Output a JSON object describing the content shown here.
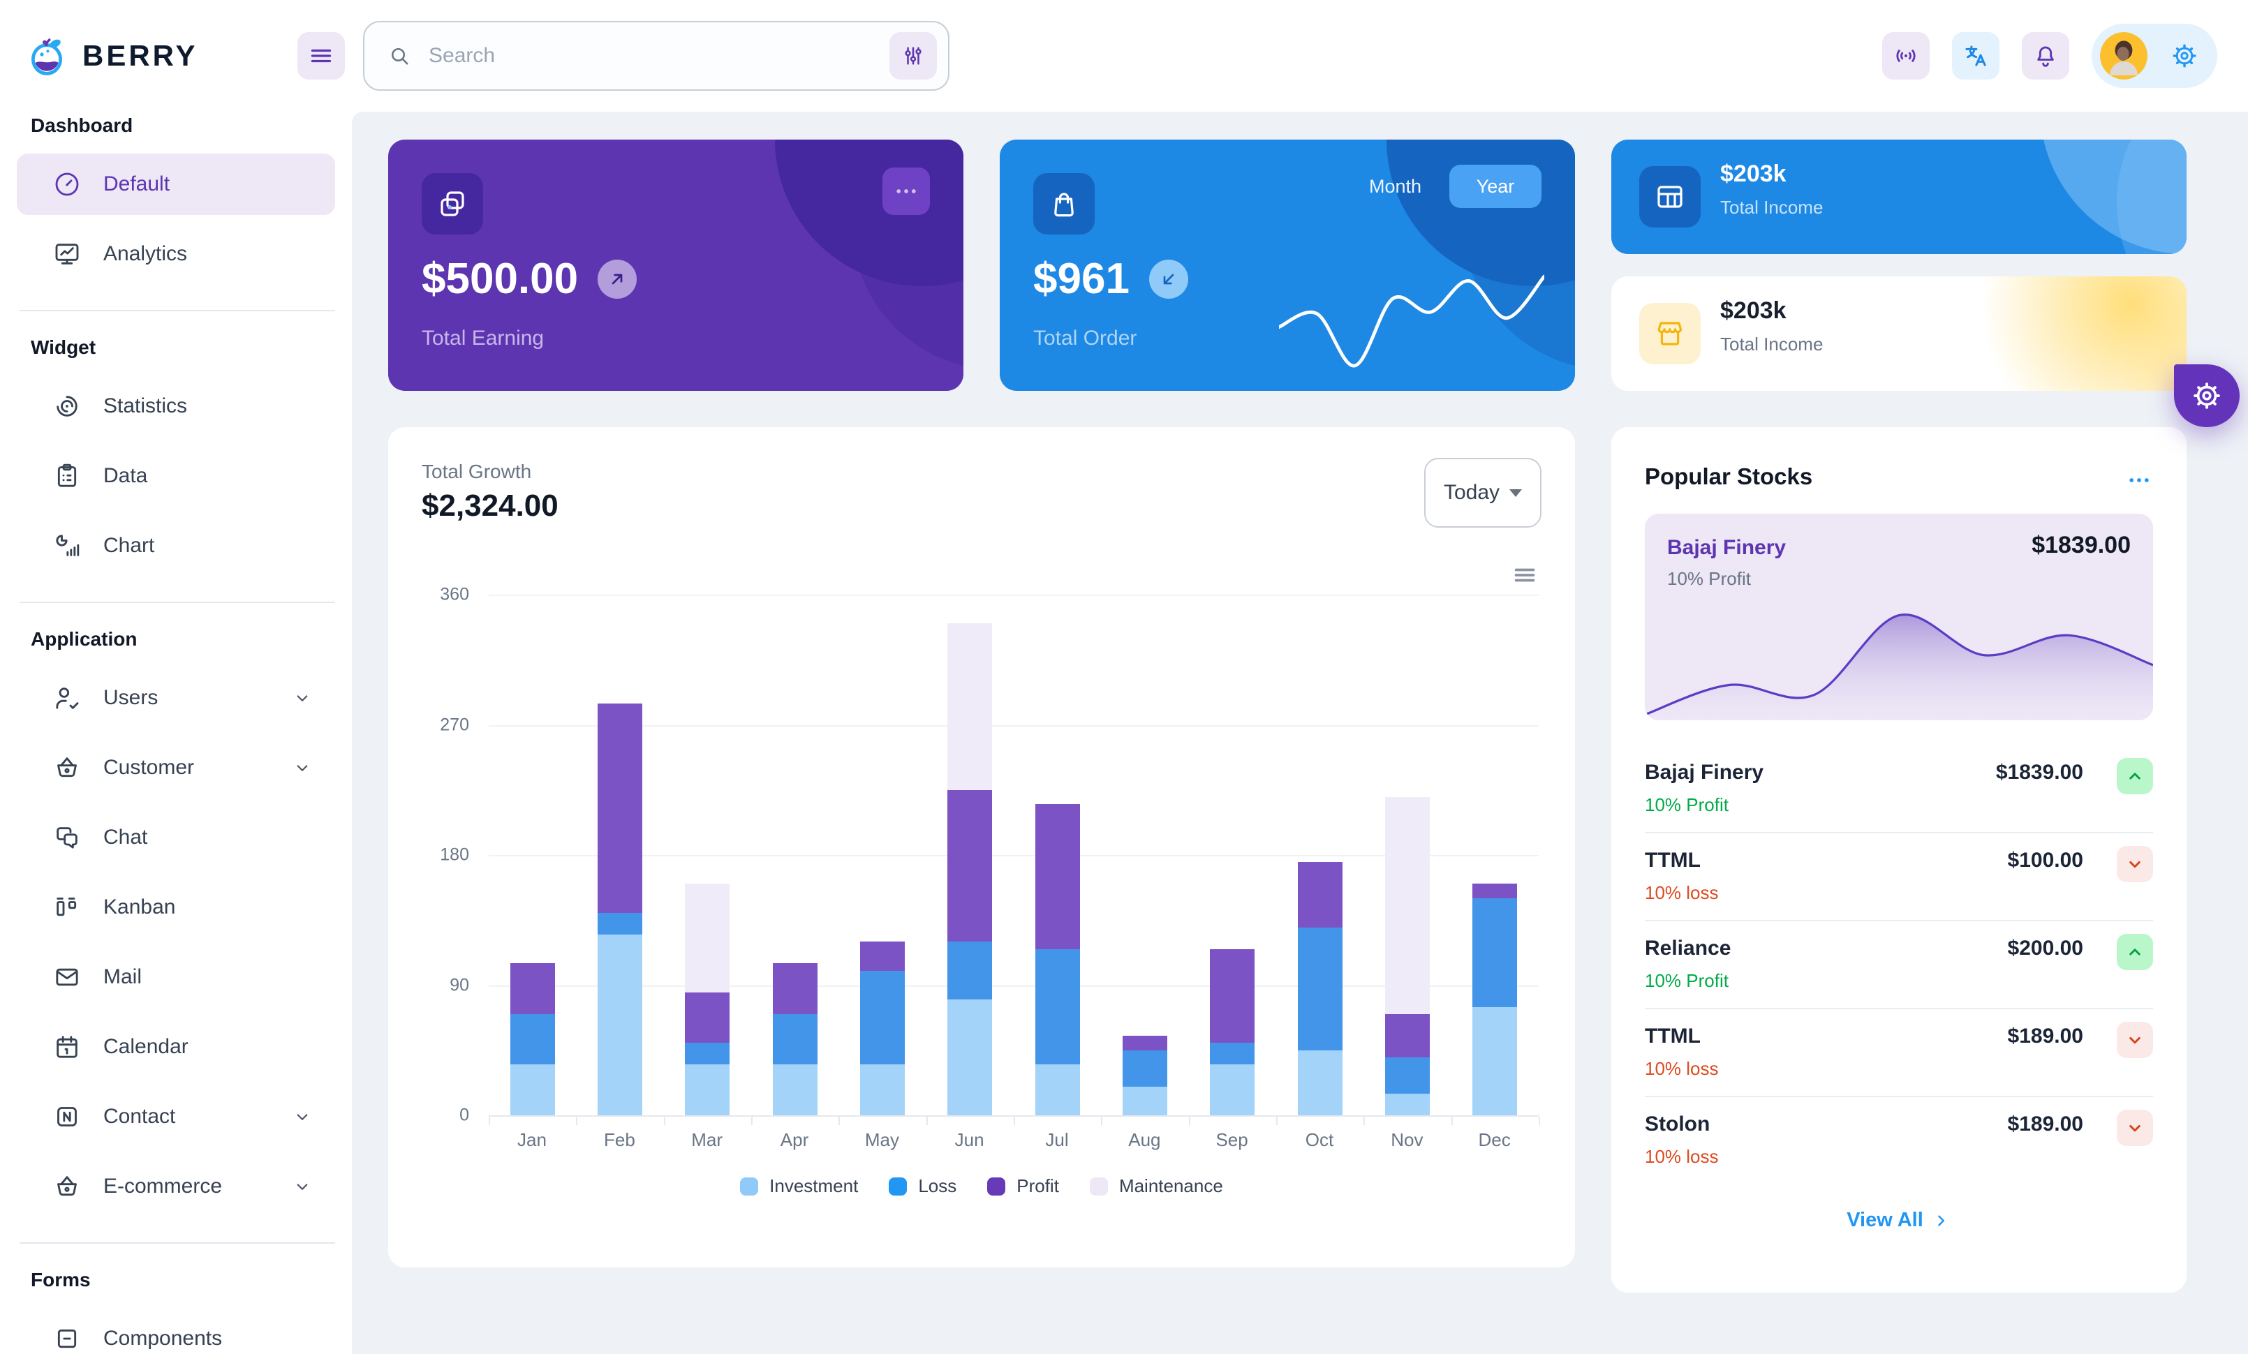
{
  "brand": {
    "name": "BERRY"
  },
  "header": {
    "search": {
      "placeholder": "Search"
    },
    "icons": [
      "menu-icon",
      "search-icon",
      "adjustments-icon",
      "broadcast-icon",
      "translate-icon",
      "bell-icon",
      "gear-icon"
    ]
  },
  "sidebar": {
    "sections": [
      {
        "title": "Dashboard",
        "items": [
          {
            "label": "Default",
            "icon": "gauge",
            "active": true
          },
          {
            "label": "Analytics",
            "icon": "analytics"
          }
        ]
      },
      {
        "title": "Widget",
        "items": [
          {
            "label": "Statistics",
            "icon": "statistics"
          },
          {
            "label": "Data",
            "icon": "data"
          },
          {
            "label": "Chart",
            "icon": "chart"
          }
        ]
      },
      {
        "title": "Application",
        "items": [
          {
            "label": "Users",
            "icon": "users",
            "chevron": true
          },
          {
            "label": "Customer",
            "icon": "basket",
            "chevron": true
          },
          {
            "label": "Chat",
            "icon": "chat"
          },
          {
            "label": "Kanban",
            "icon": "kanban"
          },
          {
            "label": "Mail",
            "icon": "mail"
          },
          {
            "label": "Calendar",
            "icon": "calendar"
          },
          {
            "label": "Contact",
            "icon": "contact",
            "chevron": true
          },
          {
            "label": "E-commerce",
            "icon": "basket",
            "chevron": true
          }
        ]
      },
      {
        "title": "Forms",
        "items": [
          {
            "label": "Components",
            "icon": "components"
          }
        ]
      }
    ]
  },
  "cards": {
    "earning": {
      "value": "$500.00",
      "label": "Total Earning"
    },
    "order": {
      "value": "$961",
      "label": "Total Order",
      "toggle": {
        "options": [
          "Month",
          "Year"
        ],
        "selected": "Year"
      }
    },
    "income_dark": {
      "value": "$203k",
      "label": "Total Income"
    },
    "income_light": {
      "value": "$203k",
      "label": "Total Income"
    }
  },
  "growth": {
    "label": "Total Growth",
    "value": "$2,324.00",
    "period": "Today"
  },
  "stocks": {
    "title": "Popular Stocks",
    "featured": {
      "name": "Bajaj Finery",
      "sub": "10% Profit",
      "price": "$1839.00"
    },
    "items": [
      {
        "name": "Bajaj Finery",
        "sub": "10% Profit",
        "price": "$1839.00",
        "trend": "up"
      },
      {
        "name": "TTML",
        "sub": "10% loss",
        "price": "$100.00",
        "trend": "down"
      },
      {
        "name": "Reliance",
        "sub": "10% Profit",
        "price": "$200.00",
        "trend": "up"
      },
      {
        "name": "TTML",
        "sub": "10% loss",
        "price": "$189.00",
        "trend": "down"
      },
      {
        "name": "Stolon",
        "sub": "10% loss",
        "price": "$189.00",
        "trend": "down"
      }
    ],
    "view_all": "View All"
  },
  "colors": {
    "secondary": "#5e35b1",
    "primary": "#1e88e5",
    "success": "#00ab47",
    "success_bg": "#b9f6ca",
    "danger": "#d84315",
    "danger_bg": "#fbe9e7",
    "warning": "#ffc107",
    "content_bg": "#eef2f6"
  },
  "chart_data": [
    {
      "id": "total-growth",
      "type": "bar",
      "stacked": true,
      "title": "Total Growth",
      "categories": [
        "Jan",
        "Feb",
        "Mar",
        "Apr",
        "May",
        "Jun",
        "Jul",
        "Aug",
        "Sep",
        "Oct",
        "Nov",
        "Dec"
      ],
      "series": [
        {
          "name": "Investment",
          "color": "#a3d3f9",
          "values": [
            35,
            125,
            35,
            35,
            35,
            80,
            35,
            20,
            35,
            45,
            15,
            75
          ]
        },
        {
          "name": "Loss",
          "color": "#4295e9",
          "values": [
            35,
            15,
            15,
            35,
            65,
            40,
            80,
            25,
            15,
            85,
            25,
            75
          ]
        },
        {
          "name": "Profit",
          "color": "#7c53c5",
          "values": [
            35,
            145,
            35,
            35,
            20,
            105,
            100,
            10,
            65,
            45,
            30,
            10
          ]
        },
        {
          "name": "Maintenance",
          "color": "#f0ebf8",
          "values": [
            0,
            0,
            75,
            0,
            0,
            115,
            0,
            0,
            0,
            0,
            150,
            0
          ]
        }
      ],
      "legend_colors": [
        "#90caf9",
        "#2196f3",
        "#673ab7",
        "#ede7f6"
      ],
      "ylim": [
        0,
        360
      ],
      "yticks": [
        0,
        90,
        180,
        270,
        360
      ],
      "grid": "horizontal",
      "legend_position": "bottom"
    },
    {
      "id": "total-order-spark",
      "type": "line",
      "color": "#ffffff",
      "values": [
        35,
        44,
        9,
        54,
        45,
        66,
        41,
        69
      ]
    },
    {
      "id": "bajaj-area",
      "type": "area",
      "line_color": "#5b3cc4",
      "fill_from": "#a18bd8",
      "fill_to": "#ede7f6",
      "values": [
        0,
        15,
        10,
        50,
        30,
        40,
        25
      ]
    }
  ]
}
